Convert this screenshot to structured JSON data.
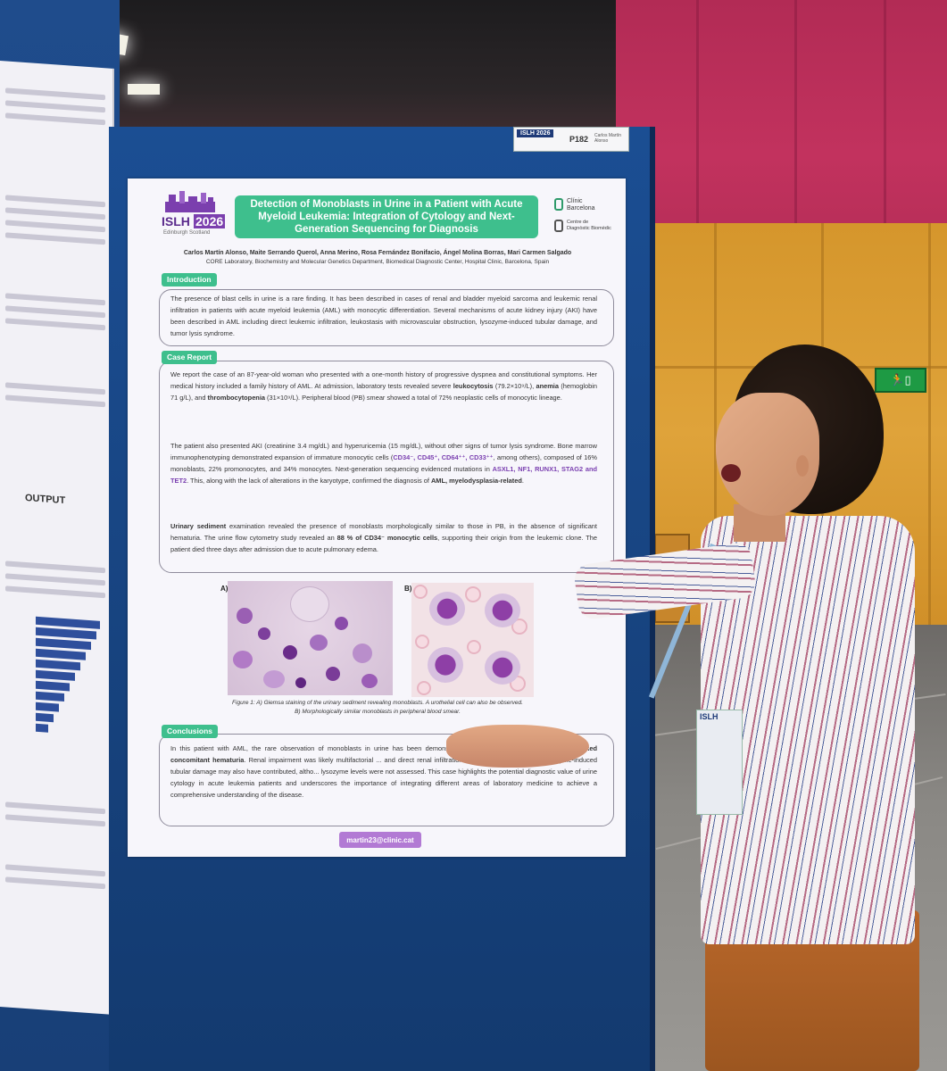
{
  "scene": {
    "exit_sign": "⇦ ⬛",
    "left_poster_output_label": "OUTPUT"
  },
  "board_tag": {
    "conference": "ISLH 2026",
    "code": "P182",
    "author_note": "Carlos Martín Alonso"
  },
  "poster": {
    "conference_logo": {
      "name": "ISLH",
      "year": "2026",
      "place": "Edinburgh Scotland"
    },
    "title": "Detection of Monoblasts in Urine in a Patient with Acute Myeloid Leukemia: Integration of Cytology and Next-Generation Sequencing for Diagnosis",
    "institution_logo": {
      "name": "Clínic Barcelona",
      "unit": "Centre de Diagnòstic Biomèdic"
    },
    "authors": "Carlos Martín Alonso, Maite Serrando Querol, Anna Merino, Rosa Fernández Bonifacio, Ángel Molina Borras, Mari Carmen Salgado",
    "affiliation": "CORE Laboratory, Biochemistry and Molecular Genetics Department, Biomedical Diagnostic Center, Hospital Clinic, Barcelona, Spain",
    "sections": {
      "introduction": {
        "label": "Introduction",
        "text": "The presence of blast cells in urine is a rare finding. It has been described in cases of renal and bladder myeloid sarcoma and leukemic renal infiltration in patients with acute myeloid leukemia (AML) with monocytic differentiation. Several mechanisms of acute kidney injury (AKI) have been described in AML including direct leukemic infiltration, leukostasis with microvascular obstruction, lysozyme-induced tubular damage, and tumor lysis syndrome."
      },
      "case_report": {
        "label": "Case Report",
        "p1_a": "We report the case of an 87-year-old woman who presented with a one-month history of progressive dyspnea and constitutional symptoms. Her medical history included a family history of AML. At admission, laboratory tests revealed severe ",
        "p1_b": "leukocytosis",
        "p1_c": " (79.2×10⁹/L), ",
        "p1_d": "anemia",
        "p1_e": " (hemoglobin 71 g/L), and ",
        "p1_f": "thrombocytopenia",
        "p1_g": " (31×10⁹/L). Peripheral blood (PB) smear showed a total of 72% neoplastic cells of monocytic lineage.",
        "p2_a": "The patient also presented AKI (creatinine 3.4 mg/dL) and hyperuricemia (15 mg/dL), without other signs of tumor lysis syndrome. Bone marrow immunophenotyping demonstrated expansion of immature monocytic cells (",
        "p2_markers": "CD34⁻, CD45⁺, CD64⁺⁺, CD33⁺⁺",
        "p2_b": ", among others), composed of 16% monoblasts, 22% promonocytes, and 34% monocytes. Next-generation sequencing evidenced mutations in ",
        "p2_genes": "ASXL1, NF1, RUNX1, STAG2 and TET2",
        "p2_c": ". This, along with the lack of alterations in the karyotype, confirmed the diagnosis of ",
        "p2_dx": "AML, myelodysplasia-related",
        "p2_d": ".",
        "p3_a": "Urinary sediment",
        "p3_b": " examination revealed the presence of monoblasts morphologically similar to those in PB, in the absence of significant hematuria. The urine flow cytometry study revealed an ",
        "p3_c": "88 % of CD34⁻ monocytic cells",
        "p3_d": ", supporting their origin from the leukemic clone. The patient died three days after admission due to acute pulmonary edema."
      },
      "figure": {
        "label_a": "A)",
        "label_b": "B)",
        "scale": "14µm",
        "caption_1": "Figure 1: A) Giemsa staining of the urinary sediment revealing monoblasts. A urothelial cell can also be observed.",
        "caption_2": "B) Morphologically similar monoblasts in peripheral blood smear."
      },
      "conclusions": {
        "label": "Conclusions",
        "text_a": "In this patient with AML, the rare observation of monoblasts in urine has been demonstrated ... of these characteristics ",
        "text_b": "which lacked concomitant hematuria",
        "text_c": ". Renal impairment was likely multifactorial ... and direct renal infiltration by circulating blast cells. Lysozyme-induced tubular damage may also have contributed, altho... lysozyme levels were not assessed. This case highlights the potential diagnostic value of urine cytology in acute leukemia patients and underscores the importance of integrating different areas of laboratory medicine to achieve a comprehensive understanding of the disease."
      }
    },
    "email": "martin23@clinic.cat"
  },
  "person": {
    "badge": "ISLH"
  },
  "colors": {
    "accent_green": "#3ebf8d",
    "accent_purple": "#7a3fb0",
    "board_blue": "#1b4e93"
  }
}
